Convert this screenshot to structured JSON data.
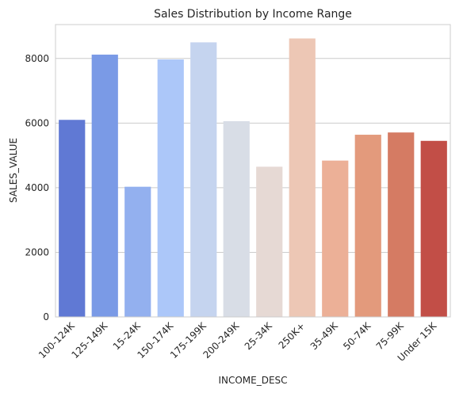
{
  "chart_data": {
    "type": "bar",
    "title": "Sales Distribution by Income Range",
    "xlabel": "INCOME_DESC",
    "ylabel": "SALES_VALUE",
    "categories": [
      "100-124K",
      "125-149K",
      "15-24K",
      "150-174K",
      "175-199K",
      "200-249K",
      "25-34K",
      "250K+",
      "35-49K",
      "50-74K",
      "75-99K",
      "Under 15K"
    ],
    "values": [
      6100,
      8120,
      4030,
      7970,
      8500,
      6060,
      4650,
      8620,
      4840,
      5640,
      5710,
      5450
    ],
    "colors": [
      "#6079d4",
      "#7a9ae6",
      "#93b0ef",
      "#acc7f9",
      "#c5d4ef",
      "#d8dde6",
      "#e6d9d4",
      "#edc7b5",
      "#ecb097",
      "#e39a7c",
      "#d57b63",
      "#c24e47"
    ],
    "ylim": [
      0,
      9050
    ],
    "yticks": [
      0,
      2000,
      4000,
      6000,
      8000
    ],
    "grid": true,
    "legend": "none"
  }
}
